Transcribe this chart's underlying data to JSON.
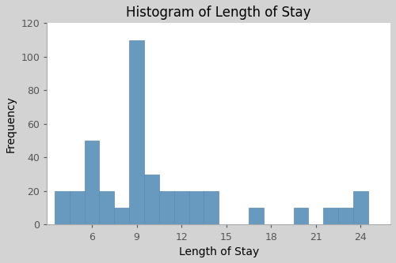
{
  "title": "Histogram of Length of Stay",
  "xlabel": "Length of Stay",
  "ylabel": "Frequency",
  "bar_centers": [
    4,
    5,
    6,
    7,
    8,
    9,
    10,
    11,
    12,
    13,
    14,
    17,
    20,
    22,
    23,
    24
  ],
  "bar_heights": [
    20,
    20,
    50,
    20,
    10,
    110,
    30,
    20,
    20,
    20,
    20,
    10,
    10,
    10,
    10,
    20
  ],
  "bar_width": 1,
  "bar_color": "#6899bf",
  "bar_edgecolor": "#5a88ae",
  "xlim": [
    3,
    26
  ],
  "ylim": [
    0,
    120
  ],
  "xticks": [
    6,
    9,
    12,
    15,
    18,
    21,
    24
  ],
  "yticks": [
    0,
    20,
    40,
    60,
    80,
    100,
    120
  ],
  "bg_color": "#d3d3d3",
  "plot_bg_color": "#ffffff",
  "title_fontsize": 12,
  "label_fontsize": 10,
  "tick_fontsize": 9
}
